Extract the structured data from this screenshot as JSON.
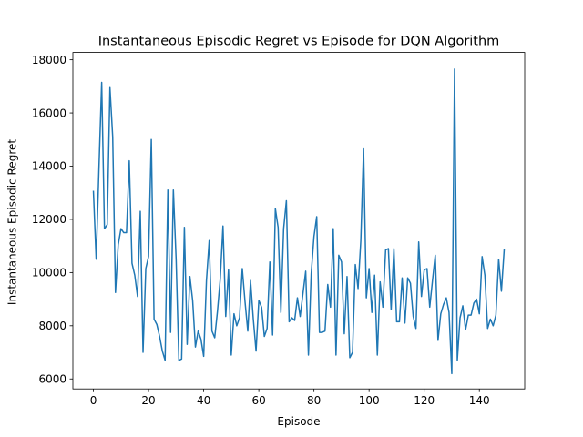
{
  "chart_data": {
    "type": "line",
    "title": "Instantaneous Episodic Regret vs Episode for DQN Algorithm",
    "xlabel": "Episode",
    "ylabel": "Instantaneous Episodic Regret",
    "xlim": [
      -7.45,
      156.45
    ],
    "ylim": [
      5625,
      18275
    ],
    "xticks": [
      0,
      20,
      40,
      60,
      80,
      100,
      120,
      140
    ],
    "yticks": [
      6000,
      8000,
      10000,
      12000,
      14000,
      16000,
      18000
    ],
    "grid": false,
    "series": [
      {
        "color": "#1f77b4",
        "x": [
          0,
          1,
          2,
          3,
          4,
          5,
          6,
          7,
          8,
          9,
          10,
          11,
          12,
          13,
          14,
          15,
          16,
          17,
          18,
          19,
          20,
          21,
          22,
          23,
          24,
          25,
          26,
          27,
          28,
          29,
          30,
          31,
          32,
          33,
          34,
          35,
          36,
          37,
          38,
          39,
          40,
          41,
          42,
          43,
          44,
          45,
          46,
          47,
          48,
          49,
          50,
          51,
          52,
          53,
          54,
          55,
          56,
          57,
          58,
          59,
          60,
          61,
          62,
          63,
          64,
          65,
          66,
          67,
          68,
          69,
          70,
          71,
          72,
          73,
          74,
          75,
          76,
          77,
          78,
          79,
          80,
          81,
          82,
          83,
          84,
          85,
          86,
          87,
          88,
          89,
          90,
          91,
          92,
          93,
          94,
          95,
          96,
          97,
          98,
          99,
          100,
          101,
          102,
          103,
          104,
          105,
          106,
          107,
          108,
          109,
          110,
          111,
          112,
          113,
          114,
          115,
          116,
          117,
          118,
          119,
          120,
          121,
          122,
          123,
          124,
          125,
          126,
          127,
          128,
          129,
          130,
          131,
          132,
          133,
          134,
          135,
          136,
          137,
          138,
          139,
          140,
          141,
          142,
          143,
          144,
          145,
          146,
          147,
          148,
          149
        ],
        "values": [
          13050,
          10500,
          13900,
          17150,
          11650,
          11800,
          16950,
          15100,
          9250,
          11050,
          11650,
          11500,
          11500,
          14200,
          10350,
          9900,
          9100,
          12300,
          7000,
          10150,
          10600,
          15000,
          8250,
          8050,
          7600,
          7050,
          6700,
          13100,
          7750,
          13100,
          10500,
          6700,
          6750,
          11700,
          7300,
          9850,
          8950,
          7200,
          7800,
          7500,
          6850,
          9700,
          11200,
          7800,
          7550,
          8550,
          9750,
          11750,
          8350,
          10100,
          6900,
          8450,
          8000,
          8300,
          10150,
          8900,
          7800,
          9700,
          8250,
          7050,
          8950,
          8700,
          7600,
          7900,
          10400,
          7650,
          12400,
          11700,
          8500,
          11650,
          12700,
          8150,
          8300,
          8200,
          9050,
          8350,
          9200,
          10050,
          6900,
          9950,
          11350,
          12100,
          7750,
          7750,
          7800,
          9550,
          8700,
          11650,
          6900,
          10650,
          10400,
          7700,
          9850,
          6800,
          7000,
          10300,
          9400,
          11200,
          14650,
          9050,
          10150,
          8500,
          9900,
          6900,
          9650,
          8700,
          10850,
          10900,
          8600,
          10900,
          8150,
          8150,
          9800,
          8100,
          9800,
          9600,
          8350,
          7900,
          11150,
          9100,
          10100,
          10150,
          8700,
          9700,
          10650,
          7450,
          8450,
          8800,
          9050,
          8500,
          6200,
          17650,
          6700,
          8300,
          8750,
          7850,
          8400,
          8400,
          8850,
          9000,
          8450,
          10600,
          9900,
          7900,
          8250,
          8000,
          8400,
          10500,
          9300,
          10850
        ]
      }
    ]
  }
}
